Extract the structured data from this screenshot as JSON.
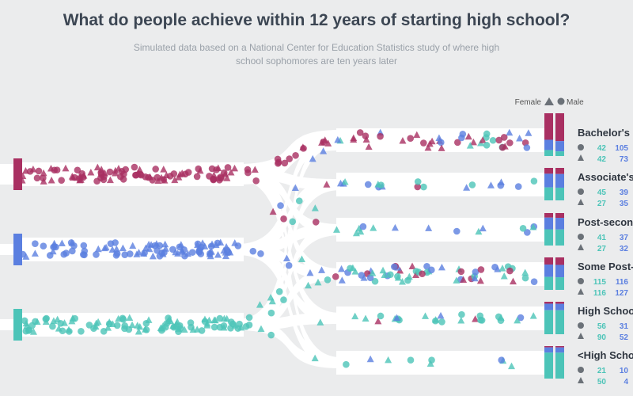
{
  "title": "What do people achieve within 12 years of starting high school?",
  "subtitle": "Simulated data based on a National Center for Education Statistics study of where high school sophomores are ten years later",
  "legend": {
    "female": "Female",
    "male": "Male"
  },
  "colors": {
    "top": "#a93062",
    "middle": "#5b7fe0",
    "bottom": "#4cc4b8",
    "female_num": "#4cc4b8",
    "male_num": "#5b7fe0",
    "path": "#ffffff",
    "bg": "#ebeced"
  },
  "chart_data": {
    "type": "flow-scatter",
    "title": "What do people achieve within 12 years of starting high school?",
    "sources": [
      {
        "id": "top",
        "color": "#a93062"
      },
      {
        "id": "middle",
        "color": "#5b7fe0"
      },
      {
        "id": "bottom",
        "color": "#4cc4b8"
      }
    ],
    "outcomes": [
      {
        "label": "Bachelor's a",
        "circle": [
          42,
          105
        ],
        "triangle": [
          42,
          73
        ],
        "mix": [
          0.62,
          0.24,
          0.14
        ]
      },
      {
        "label": "Associate's",
        "circle": [
          45,
          39
        ],
        "triangle": [
          27,
          35
        ],
        "mix": [
          0.18,
          0.42,
          0.4
        ]
      },
      {
        "label": "Post-second",
        "circle": [
          41,
          37
        ],
        "triangle": [
          27,
          32
        ],
        "mix": [
          0.14,
          0.36,
          0.5
        ]
      },
      {
        "label": "Some Post-",
        "circle": [
          115,
          116
        ],
        "triangle": [
          116,
          127
        ],
        "mix": [
          0.22,
          0.38,
          0.4
        ]
      },
      {
        "label": "High Schoo",
        "circle": [
          56,
          31
        ],
        "triangle": [
          90,
          52
        ],
        "mix": [
          0.06,
          0.2,
          0.74
        ]
      },
      {
        "label": "<High Scho",
        "circle": [
          21,
          10
        ],
        "triangle": [
          50,
          4
        ],
        "mix": [
          0.04,
          0.16,
          0.8
        ]
      }
    ]
  }
}
